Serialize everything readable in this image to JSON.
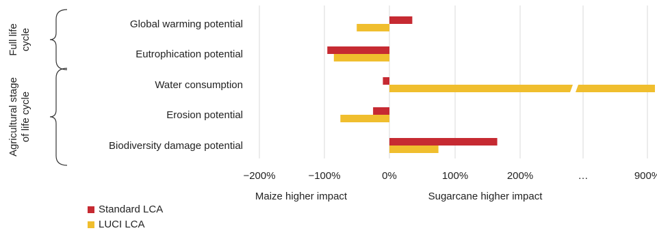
{
  "chart_data": {
    "type": "bar",
    "orientation": "horizontal",
    "categories": [
      "Global warming potential",
      "Eutrophication potential",
      "Water consumption",
      "Erosion potential",
      "Biodiversity damage potential"
    ],
    "groups": [
      {
        "label": "Full life cycle",
        "categories": [
          "Global warming potential",
          "Eutrophication potential"
        ]
      },
      {
        "label": "Agricultural stage of life cycle",
        "categories": [
          "Water consumption",
          "Erosion potential",
          "Biodiversity damage potential"
        ]
      }
    ],
    "series": [
      {
        "name": "Standard LCA",
        "color": "#c62a32",
        "values": [
          35,
          -95,
          -10,
          -25,
          165
        ]
      },
      {
        "name": "LUCI LCA",
        "color": "#f0be2e",
        "values": [
          -50,
          -85,
          950,
          -75,
          75
        ]
      }
    ],
    "x_ticks": [
      "−200%",
      "−100%",
      "0%",
      "100%",
      "200%",
      "…",
      "900%"
    ],
    "x_tick_values": [
      -200,
      -100,
      0,
      100,
      200,
      null,
      900
    ],
    "axis_break": true,
    "direction_labels": {
      "negative": "Maize higher impact",
      "positive": "Sugarcane higher impact"
    },
    "grid": true,
    "legend_position": "bottom-left"
  }
}
